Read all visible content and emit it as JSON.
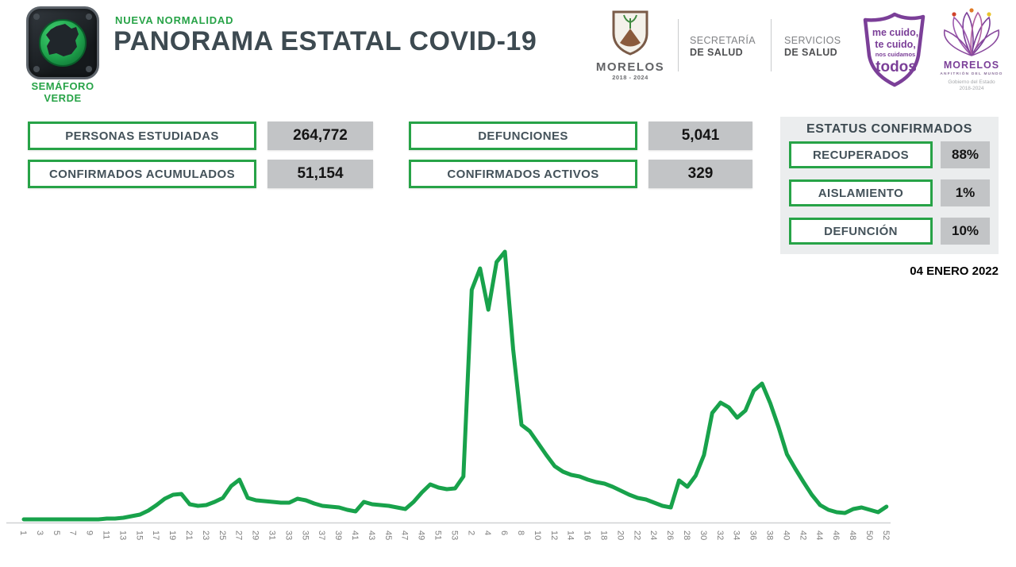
{
  "header": {
    "badge": {
      "line1": "SEMÁFORO",
      "line2": "VERDE"
    },
    "kicker": "NUEVA NORMALIDAD",
    "title": "PANORAMA ESTATAL COVID-19",
    "coat_of_arms": {
      "name": "MORELOS",
      "years": "2018 - 2024"
    },
    "secretaria": {
      "line1": "SECRETARÍA",
      "line2": "DE SALUD"
    },
    "servicios": {
      "line1": "SERVICIOS",
      "line2": "DE SALUD"
    },
    "shield": {
      "line1": "me cuido,",
      "line2": "te cuido,",
      "line3": "nos cuidamos",
      "line4": "todos"
    },
    "brand": {
      "name": "MORELOS",
      "subtitle": "ANFITRIÓN DEL MUNDO",
      "gov": "Gobierno del Estado",
      "years": "2018-2024"
    }
  },
  "stats": [
    {
      "label": "PERSONAS ESTUDIADAS",
      "value": "264,772"
    },
    {
      "label": "CONFIRMADOS ACUMULADOS",
      "value": "51,154"
    },
    {
      "label": "DEFUNCIONES",
      "value": "5,041"
    },
    {
      "label": "CONFIRMADOS ACTIVOS",
      "value": "329"
    }
  ],
  "status_panel": {
    "title": "ESTATUS CONFIRMADOS",
    "rows": [
      {
        "label": "RECUPERADOS",
        "value": "88%"
      },
      {
        "label": "AISLAMIENTO",
        "value": "1%"
      },
      {
        "label": "DEFUNCIÓN",
        "value": "10%"
      }
    ]
  },
  "report_date": "04 ENERO 2022",
  "chart_data": {
    "type": "line",
    "series_name": "confirmados semanales",
    "x_axis_note": "semanas epidemiológicas: año 1 (1-53) seguido de año 2 (1-52); se etiqueta una semana de cada dos",
    "x_tick_labels": [
      "1",
      "3",
      "5",
      "7",
      "9",
      "11",
      "13",
      "15",
      "17",
      "19",
      "21",
      "23",
      "25",
      "27",
      "29",
      "31",
      "33",
      "35",
      "37",
      "39",
      "41",
      "43",
      "45",
      "47",
      "49",
      "51",
      "53",
      "2",
      "4",
      "6",
      "8",
      "10",
      "12",
      "14",
      "16",
      "18",
      "20",
      "22",
      "24",
      "26",
      "28",
      "30",
      "32",
      "34",
      "36",
      "38",
      "40",
      "42",
      "44",
      "46",
      "48",
      "50",
      "52"
    ],
    "y_axis_labels_visible": false,
    "values_unit": "relative (pixel-estimated, 0 = baseline, 340 = max peak)",
    "ylim": [
      0,
      355
    ],
    "grid": false,
    "legend": false,
    "line_color": "#18a24b",
    "values": [
      3,
      3,
      3,
      3,
      3,
      3,
      3,
      3,
      3,
      3,
      4,
      4,
      5,
      7,
      9,
      14,
      21,
      29,
      34,
      35,
      22,
      20,
      21,
      25,
      30,
      45,
      53,
      30,
      27,
      26,
      25,
      24,
      24,
      29,
      27,
      23,
      20,
      19,
      18,
      15,
      13,
      25,
      22,
      21,
      20,
      18,
      16,
      25,
      37,
      47,
      43,
      41,
      42,
      57,
      292,
      319,
      267,
      327,
      340,
      217,
      122,
      114,
      99,
      84,
      70,
      63,
      59,
      57,
      53,
      50,
      48,
      44,
      39,
      34,
      30,
      28,
      24,
      20,
      18,
      52,
      44,
      58,
      84,
      137,
      150,
      144,
      131,
      140,
      165,
      174,
      149,
      119,
      85,
      67,
      50,
      34,
      21,
      15,
      12,
      11,
      16,
      18,
      15,
      12,
      19
    ]
  },
  "colors": {
    "accent_green": "#27a347",
    "line_green": "#18a24b",
    "title_slate": "#3d4a51",
    "chip_gray": "#c2c4c6",
    "panel_gray": "#ebedee",
    "brand_purple": "#7b3f98",
    "axis_label_gray": "#7f7f7f"
  }
}
